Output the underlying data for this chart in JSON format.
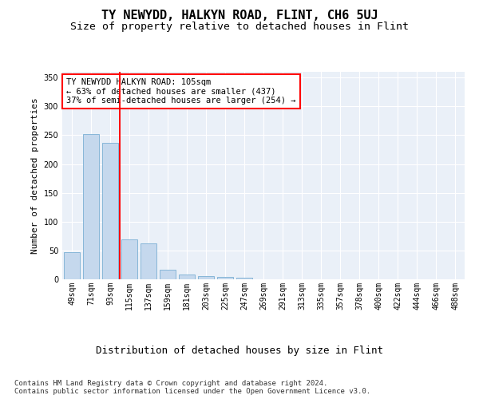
{
  "title": "TY NEWYDD, HALKYN ROAD, FLINT, CH6 5UJ",
  "subtitle": "Size of property relative to detached houses in Flint",
  "xlabel": "Distribution of detached houses by size in Flint",
  "ylabel": "Number of detached properties",
  "categories": [
    "49sqm",
    "71sqm",
    "93sqm",
    "115sqm",
    "137sqm",
    "159sqm",
    "181sqm",
    "203sqm",
    "225sqm",
    "247sqm",
    "269sqm",
    "291sqm",
    "313sqm",
    "335sqm",
    "357sqm",
    "378sqm",
    "400sqm",
    "422sqm",
    "444sqm",
    "466sqm",
    "488sqm"
  ],
  "values": [
    47,
    252,
    237,
    69,
    63,
    16,
    9,
    5,
    4,
    3,
    0,
    0,
    0,
    0,
    0,
    0,
    0,
    0,
    0,
    0,
    0
  ],
  "bar_color": "#c5d8ed",
  "bar_edge_color": "#7aafd4",
  "vline_x": 2.5,
  "vline_color": "red",
  "annotation_text": "TY NEWYDD HALKYN ROAD: 105sqm\n← 63% of detached houses are smaller (437)\n37% of semi-detached houses are larger (254) →",
  "annotation_box_color": "white",
  "annotation_box_edge": "red",
  "ylim": [
    0,
    360
  ],
  "yticks": [
    0,
    50,
    100,
    150,
    200,
    250,
    300,
    350
  ],
  "bg_color": "#eaf0f8",
  "footer": "Contains HM Land Registry data © Crown copyright and database right 2024.\nContains public sector information licensed under the Open Government Licence v3.0.",
  "title_fontsize": 11,
  "subtitle_fontsize": 9.5,
  "xlabel_fontsize": 9,
  "ylabel_fontsize": 8,
  "tick_fontsize": 7,
  "annotation_fontsize": 7.5,
  "footer_fontsize": 6.5
}
